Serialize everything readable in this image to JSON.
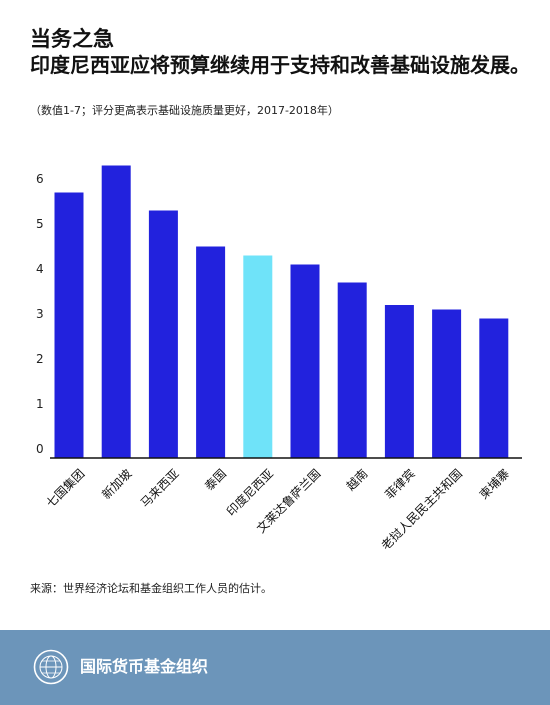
{
  "header": {
    "title": "当务之急",
    "subtitle": "印度尼西亚应将预算继续用于支持和改善基础设施发展。",
    "note": "（数值1-7；评分更高表示基础设施质量更好，2017-2018年）"
  },
  "source": "来源：世界经济论坛和基金组织工作人员的估计。",
  "footer": {
    "org_name": "国际货币基金组织",
    "logo_icon": "imf-seal-icon"
  },
  "colors": {
    "bar": "#2222dd",
    "highlight": "#6fe3f9",
    "footer_bg": "#6c95ba"
  },
  "chart_data": {
    "type": "bar",
    "categories": [
      "七国集团",
      "新加坡",
      "马来西亚",
      "泰国",
      "印度尼西亚",
      "文莱达鲁萨兰国",
      "越南",
      "菲律宾",
      "老挝人民民主共和国",
      "柬埔寨"
    ],
    "values": [
      5.9,
      6.5,
      5.5,
      4.7,
      4.5,
      4.3,
      3.9,
      3.4,
      3.3,
      3.1
    ],
    "highlight_index": 4,
    "yticks": [
      0,
      1,
      2,
      3,
      4,
      5,
      6
    ],
    "ylim": [
      0,
      7
    ],
    "grid": false,
    "legend": false,
    "xlabel": "",
    "ylabel": ""
  }
}
